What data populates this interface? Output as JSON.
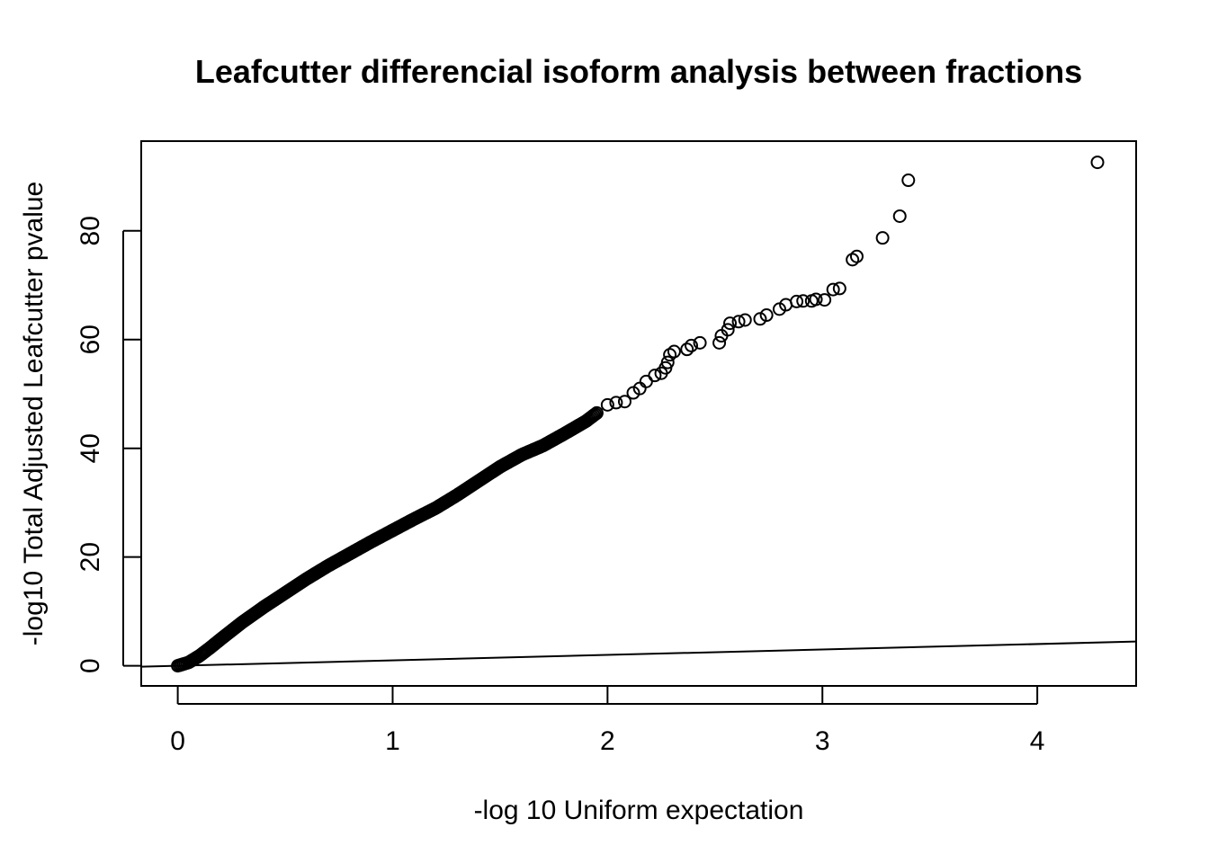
{
  "chart_data": {
    "type": "scatter",
    "title": "Leafcutter differencial isoform analysis between fractions",
    "xlabel": "-log 10 Uniform expectation",
    "ylabel": "-log10 Total Adjusted Leafcutter pvalue",
    "xlim": [
      -0.17,
      4.46
    ],
    "ylim": [
      -3.7,
      96.5
    ],
    "xticks": [
      0,
      1,
      2,
      3,
      4
    ],
    "yticks": [
      0,
      20,
      40,
      60,
      80
    ],
    "grid": false,
    "legend": "none",
    "reference_line": {
      "slope": 1,
      "intercept": 0
    },
    "point_style": {
      "shape": "open-circle",
      "color": "#000000"
    },
    "curve": [
      [
        0.0,
        0.0
      ],
      [
        0.05,
        0.6
      ],
      [
        0.1,
        1.8
      ],
      [
        0.15,
        3.3
      ],
      [
        0.2,
        4.9
      ],
      [
        0.3,
        8.0
      ],
      [
        0.4,
        10.8
      ],
      [
        0.5,
        13.4
      ],
      [
        0.6,
        16.0
      ],
      [
        0.7,
        18.4
      ],
      [
        0.8,
        20.6
      ],
      [
        0.9,
        22.8
      ],
      [
        1.0,
        24.9
      ],
      [
        1.1,
        27.0
      ],
      [
        1.2,
        29.0
      ],
      [
        1.3,
        31.4
      ],
      [
        1.4,
        34.0
      ],
      [
        1.5,
        36.6
      ],
      [
        1.6,
        38.8
      ],
      [
        1.7,
        40.5
      ],
      [
        1.8,
        42.7
      ],
      [
        1.9,
        45.0
      ],
      [
        1.95,
        46.5
      ]
    ],
    "points": [
      [
        2.0,
        48.0
      ],
      [
        2.04,
        48.4
      ],
      [
        2.08,
        48.6
      ],
      [
        2.12,
        50.2
      ],
      [
        2.15,
        51.0
      ],
      [
        2.18,
        52.3
      ],
      [
        2.22,
        53.4
      ],
      [
        2.25,
        53.8
      ],
      [
        2.27,
        54.8
      ],
      [
        2.28,
        55.8
      ],
      [
        2.29,
        57.2
      ],
      [
        2.31,
        57.8
      ],
      [
        2.37,
        58.2
      ],
      [
        2.39,
        58.9
      ],
      [
        2.43,
        59.4
      ],
      [
        2.52,
        59.4
      ],
      [
        2.53,
        60.7
      ],
      [
        2.56,
        61.8
      ],
      [
        2.57,
        63.0
      ],
      [
        2.61,
        63.3
      ],
      [
        2.64,
        63.6
      ],
      [
        2.71,
        63.8
      ],
      [
        2.74,
        64.5
      ],
      [
        2.8,
        65.6
      ],
      [
        2.83,
        66.4
      ],
      [
        2.88,
        67.0
      ],
      [
        2.91,
        67.1
      ],
      [
        2.95,
        67.1
      ],
      [
        2.97,
        67.4
      ],
      [
        3.01,
        67.3
      ],
      [
        3.05,
        69.2
      ],
      [
        3.08,
        69.4
      ],
      [
        3.14,
        74.7
      ],
      [
        3.16,
        75.3
      ],
      [
        3.28,
        78.7
      ],
      [
        3.36,
        82.7
      ],
      [
        3.4,
        89.3
      ],
      [
        4.28,
        92.6
      ]
    ]
  }
}
